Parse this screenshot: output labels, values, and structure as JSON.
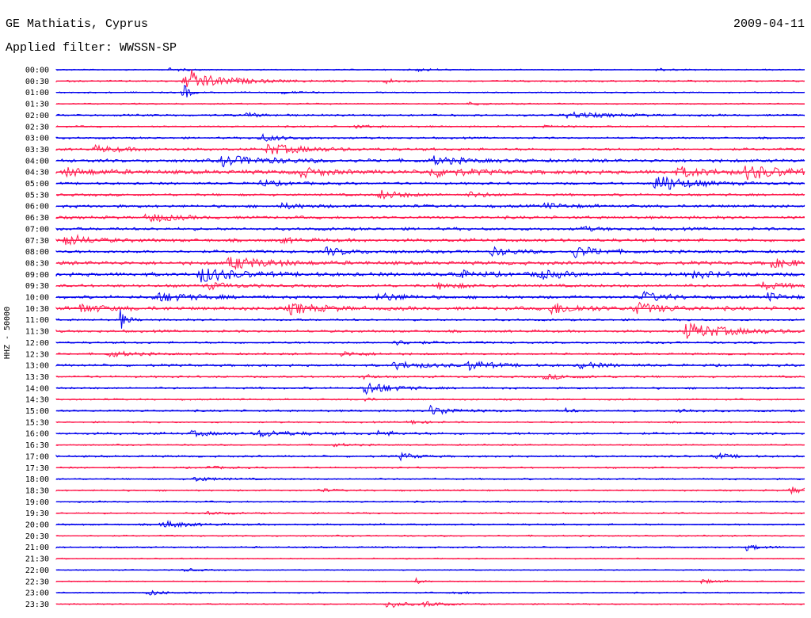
{
  "header": {
    "station": "GE Mathiatis, Cyprus",
    "date": "2009-04-11",
    "filter": "Applied filter: WWSSN-SP"
  },
  "chart_data": {
    "type": "line",
    "title": "GE Mathiatis, Cyprus",
    "date": "2009-04-11",
    "subtitle": "Applied filter: WWSSN-SP",
    "ylabel": "HHZ - 50000",
    "xlabel": "",
    "grid": false,
    "legend": "none",
    "trace_colors": [
      "#0000ee",
      "#ff1a4d"
    ],
    "rows": [
      {
        "label": "00:00",
        "color": "#0000ee",
        "noise": 0.8,
        "events": [
          {
            "at": 0.15,
            "amp": 2,
            "dur": 0.02
          },
          {
            "at": 0.48,
            "amp": 2,
            "dur": 0.02
          },
          {
            "at": 0.8,
            "amp": 2,
            "dur": 0.02
          }
        ]
      },
      {
        "label": "00:30",
        "color": "#ff1a4d",
        "noise": 1,
        "events": [
          {
            "at": 0.17,
            "amp": 15,
            "dur": 0.008
          },
          {
            "at": 0.18,
            "amp": 10,
            "dur": 0.05
          },
          {
            "at": 0.44,
            "amp": 4,
            "dur": 0.01
          }
        ]
      },
      {
        "label": "01:00",
        "color": "#0000ee",
        "noise": 0.8,
        "events": [
          {
            "at": 0.17,
            "amp": 15,
            "dur": 0.006
          },
          {
            "at": 0.3,
            "amp": 2,
            "dur": 0.02
          }
        ]
      },
      {
        "label": "01:30",
        "color": "#ff1a4d",
        "noise": 0.8,
        "events": [
          {
            "at": 0.55,
            "amp": 2,
            "dur": 0.02
          }
        ]
      },
      {
        "label": "02:00",
        "color": "#0000ee",
        "noise": 1.2,
        "events": [
          {
            "at": 0.25,
            "amp": 3,
            "dur": 0.02
          },
          {
            "at": 0.68,
            "amp": 4,
            "dur": 0.05
          }
        ]
      },
      {
        "label": "02:30",
        "color": "#ff1a4d",
        "noise": 1,
        "events": [
          {
            "at": 0.4,
            "amp": 2,
            "dur": 0.02
          },
          {
            "at": 0.65,
            "amp": 2,
            "dur": 0.02
          }
        ]
      },
      {
        "label": "03:00",
        "color": "#0000ee",
        "noise": 1.2,
        "events": [
          {
            "at": 0.27,
            "amp": 5,
            "dur": 0.03
          }
        ]
      },
      {
        "label": "03:30",
        "color": "#ff1a4d",
        "noise": 1.5,
        "events": [
          {
            "at": 0.05,
            "amp": 4,
            "dur": 0.04
          },
          {
            "at": 0.28,
            "amp": 7,
            "dur": 0.05
          }
        ]
      },
      {
        "label": "04:00",
        "color": "#0000ee",
        "noise": 2,
        "events": [
          {
            "at": 0.22,
            "amp": 6,
            "dur": 0.06
          },
          {
            "at": 0.5,
            "amp": 5,
            "dur": 0.04
          }
        ]
      },
      {
        "label": "04:30",
        "color": "#ff1a4d",
        "noise": 2.5,
        "events": [
          {
            "at": 0.01,
            "amp": 5,
            "dur": 0.04
          },
          {
            "at": 0.32,
            "amp": 7,
            "dur": 0.03
          },
          {
            "at": 0.5,
            "amp": 5,
            "dur": 0.05
          },
          {
            "at": 0.83,
            "amp": 6,
            "dur": 0.04
          },
          {
            "at": 0.92,
            "amp": 8,
            "dur": 0.05
          }
        ]
      },
      {
        "label": "05:00",
        "color": "#0000ee",
        "noise": 1.5,
        "events": [
          {
            "at": 0.27,
            "amp": 4,
            "dur": 0.03
          },
          {
            "at": 0.8,
            "amp": 12,
            "dur": 0.04
          }
        ]
      },
      {
        "label": "05:30",
        "color": "#ff1a4d",
        "noise": 1.5,
        "events": [
          {
            "at": 0.43,
            "amp": 6,
            "dur": 0.03
          },
          {
            "at": 0.55,
            "amp": 3,
            "dur": 0.03
          }
        ]
      },
      {
        "label": "06:00",
        "color": "#0000ee",
        "noise": 1.8,
        "events": [
          {
            "at": 0.3,
            "amp": 3,
            "dur": 0.03
          },
          {
            "at": 0.65,
            "amp": 3,
            "dur": 0.03
          }
        ]
      },
      {
        "label": "06:30",
        "color": "#ff1a4d",
        "noise": 1.8,
        "events": [
          {
            "at": 0.12,
            "amp": 7,
            "dur": 0.03
          }
        ]
      },
      {
        "label": "07:00",
        "color": "#0000ee",
        "noise": 1.8,
        "events": [
          {
            "at": 0.7,
            "amp": 3,
            "dur": 0.02
          }
        ]
      },
      {
        "label": "07:30",
        "color": "#ff1a4d",
        "noise": 2,
        "events": [
          {
            "at": 0.01,
            "amp": 8,
            "dur": 0.03
          },
          {
            "at": 0.3,
            "amp": 3,
            "dur": 0.02
          }
        ]
      },
      {
        "label": "08:00",
        "color": "#0000ee",
        "noise": 1.8,
        "events": [
          {
            "at": 0.36,
            "amp": 5,
            "dur": 0.03
          },
          {
            "at": 0.58,
            "amp": 5,
            "dur": 0.03
          },
          {
            "at": 0.69,
            "amp": 8,
            "dur": 0.03
          }
        ]
      },
      {
        "label": "08:30",
        "color": "#ff1a4d",
        "noise": 2.2,
        "events": [
          {
            "at": 0.23,
            "amp": 8,
            "dur": 0.05
          },
          {
            "at": 0.95,
            "amp": 6,
            "dur": 0.04
          }
        ]
      },
      {
        "label": "09:00",
        "color": "#0000ee",
        "noise": 2.4,
        "events": [
          {
            "at": 0.19,
            "amp": 10,
            "dur": 0.04
          },
          {
            "at": 0.53,
            "amp": 5,
            "dur": 0.03
          },
          {
            "at": 0.64,
            "amp": 6,
            "dur": 0.03
          },
          {
            "at": 0.85,
            "amp": 4,
            "dur": 0.03
          }
        ]
      },
      {
        "label": "09:30",
        "color": "#ff1a4d",
        "noise": 1.8,
        "events": [
          {
            "at": 0.2,
            "amp": 4,
            "dur": 0.03
          },
          {
            "at": 0.51,
            "amp": 4,
            "dur": 0.03
          },
          {
            "at": 0.94,
            "amp": 5,
            "dur": 0.03
          }
        ]
      },
      {
        "label": "10:00",
        "color": "#0000ee",
        "noise": 1.8,
        "events": [
          {
            "at": 0.13,
            "amp": 6,
            "dur": 0.05
          },
          {
            "at": 0.43,
            "amp": 6,
            "dur": 0.03
          },
          {
            "at": 0.78,
            "amp": 7,
            "dur": 0.03
          },
          {
            "at": 0.95,
            "amp": 5,
            "dur": 0.02
          }
        ]
      },
      {
        "label": "10:30",
        "color": "#ff1a4d",
        "noise": 2.2,
        "events": [
          {
            "at": 0.03,
            "amp": 6,
            "dur": 0.03
          },
          {
            "at": 0.31,
            "amp": 7,
            "dur": 0.04
          },
          {
            "at": 0.66,
            "amp": 7,
            "dur": 0.04
          },
          {
            "at": 0.77,
            "amp": 7,
            "dur": 0.04
          }
        ]
      },
      {
        "label": "11:00",
        "color": "#0000ee",
        "noise": 1.2,
        "events": [
          {
            "at": 0.085,
            "amp": 14,
            "dur": 0.008
          }
        ]
      },
      {
        "label": "11:30",
        "color": "#ff1a4d",
        "noise": 1.5,
        "events": [
          {
            "at": 0.84,
            "amp": 10,
            "dur": 0.06
          }
        ]
      },
      {
        "label": "12:00",
        "color": "#0000ee",
        "noise": 1.2,
        "events": [
          {
            "at": 0.45,
            "amp": 3,
            "dur": 0.03
          }
        ]
      },
      {
        "label": "12:30",
        "color": "#ff1a4d",
        "noise": 1.2,
        "events": [
          {
            "at": 0.07,
            "amp": 4,
            "dur": 0.03
          },
          {
            "at": 0.38,
            "amp": 3,
            "dur": 0.03
          }
        ]
      },
      {
        "label": "13:00",
        "color": "#0000ee",
        "noise": 1.5,
        "events": [
          {
            "at": 0.45,
            "amp": 5,
            "dur": 0.04
          },
          {
            "at": 0.55,
            "amp": 6,
            "dur": 0.03
          },
          {
            "at": 0.7,
            "amp": 4,
            "dur": 0.03
          }
        ]
      },
      {
        "label": "13:30",
        "color": "#ff1a4d",
        "noise": 1.2,
        "events": [
          {
            "at": 0.41,
            "amp": 6,
            "dur": 0.008
          },
          {
            "at": 0.65,
            "amp": 3,
            "dur": 0.04
          }
        ]
      },
      {
        "label": "14:00",
        "color": "#0000ee",
        "noise": 1.2,
        "events": [
          {
            "at": 0.41,
            "amp": 10,
            "dur": 0.03
          }
        ]
      },
      {
        "label": "14:30",
        "color": "#ff1a4d",
        "noise": 1,
        "events": [
          {
            "at": 0.41,
            "amp": 4,
            "dur": 0.008
          }
        ]
      },
      {
        "label": "15:00",
        "color": "#0000ee",
        "noise": 1.2,
        "events": [
          {
            "at": 0.5,
            "amp": 6,
            "dur": 0.03
          },
          {
            "at": 0.68,
            "amp": 3,
            "dur": 0.01
          },
          {
            "at": 0.83,
            "amp": 3,
            "dur": 0.02
          }
        ]
      },
      {
        "label": "15:30",
        "color": "#ff1a4d",
        "noise": 1,
        "events": [
          {
            "at": 0.47,
            "amp": 3,
            "dur": 0.02
          }
        ]
      },
      {
        "label": "16:00",
        "color": "#0000ee",
        "noise": 1.5,
        "events": [
          {
            "at": 0.18,
            "amp": 3,
            "dur": 0.03
          },
          {
            "at": 0.27,
            "amp": 4,
            "dur": 0.04
          },
          {
            "at": 0.43,
            "amp": 3,
            "dur": 0.02
          }
        ]
      },
      {
        "label": "16:30",
        "color": "#ff1a4d",
        "noise": 0.9,
        "events": [
          {
            "at": 0.37,
            "amp": 2,
            "dur": 0.02
          }
        ]
      },
      {
        "label": "17:00",
        "color": "#0000ee",
        "noise": 1.2,
        "events": [
          {
            "at": 0.46,
            "amp": 4,
            "dur": 0.02
          },
          {
            "at": 0.88,
            "amp": 4,
            "dur": 0.02
          }
        ]
      },
      {
        "label": "17:30",
        "color": "#ff1a4d",
        "noise": 1,
        "events": [
          {
            "at": 0.2,
            "amp": 2,
            "dur": 0.02
          }
        ]
      },
      {
        "label": "18:00",
        "color": "#0000ee",
        "noise": 1,
        "events": [
          {
            "at": 0.18,
            "amp": 3,
            "dur": 0.03
          }
        ]
      },
      {
        "label": "18:30",
        "color": "#ff1a4d",
        "noise": 1,
        "events": [
          {
            "at": 0.35,
            "amp": 2,
            "dur": 0.02
          },
          {
            "at": 0.98,
            "amp": 5,
            "dur": 0.02
          }
        ]
      },
      {
        "label": "19:00",
        "color": "#0000ee",
        "noise": 1,
        "events": []
      },
      {
        "label": "19:30",
        "color": "#ff1a4d",
        "noise": 1,
        "events": [
          {
            "at": 0.2,
            "amp": 2,
            "dur": 0.02
          }
        ]
      },
      {
        "label": "20:00",
        "color": "#0000ee",
        "noise": 1.1,
        "events": [
          {
            "at": 0.14,
            "amp": 5,
            "dur": 0.03
          }
        ]
      },
      {
        "label": "20:30",
        "color": "#ff1a4d",
        "noise": 0.9,
        "events": []
      },
      {
        "label": "21:00",
        "color": "#0000ee",
        "noise": 1,
        "events": [
          {
            "at": 0.92,
            "amp": 4,
            "dur": 0.02
          }
        ]
      },
      {
        "label": "21:30",
        "color": "#ff1a4d",
        "noise": 0.7,
        "events": []
      },
      {
        "label": "22:00",
        "color": "#0000ee",
        "noise": 0.7,
        "events": [
          {
            "at": 0.17,
            "amp": 2,
            "dur": 0.02
          }
        ]
      },
      {
        "label": "22:30",
        "color": "#ff1a4d",
        "noise": 0.7,
        "events": [
          {
            "at": 0.48,
            "amp": 4,
            "dur": 0.008
          },
          {
            "at": 0.86,
            "amp": 3,
            "dur": 0.02
          }
        ]
      },
      {
        "label": "23:00",
        "color": "#0000ee",
        "noise": 0.8,
        "events": [
          {
            "at": 0.12,
            "amp": 4,
            "dur": 0.02
          },
          {
            "at": 0.53,
            "amp": 2,
            "dur": 0.02
          }
        ]
      },
      {
        "label": "23:30",
        "color": "#ff1a4d",
        "noise": 0.8,
        "events": [
          {
            "at": 0.44,
            "amp": 6,
            "dur": 0.02
          },
          {
            "at": 0.49,
            "amp": 4,
            "dur": 0.02
          }
        ]
      }
    ]
  }
}
